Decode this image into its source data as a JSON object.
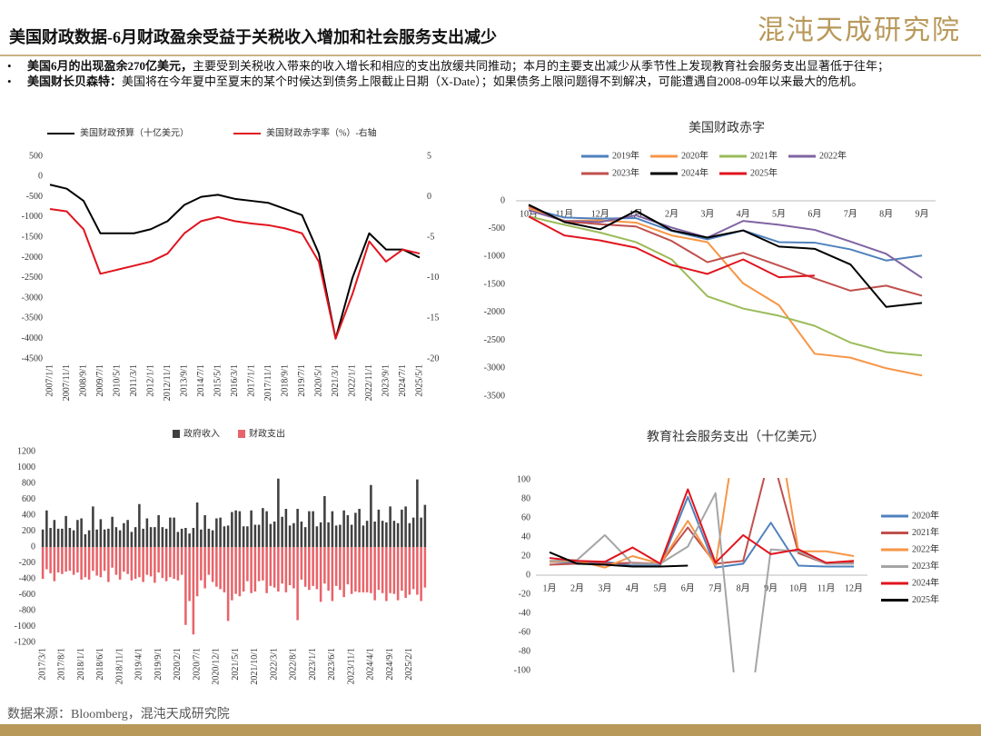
{
  "header": {
    "title": "美国财政数据-6月财政盈余受益于关税收入增加和社会服务支出减少",
    "logo": "混沌天成研究院"
  },
  "bullets": [
    {
      "bold": "美国6月的出现盈余270亿美元，",
      "text": "主要受到关税收入带来的收入增长和相应的支出放缓共同推动；本月的主要支出减少从季节性上发现教育社会服务支出显著低于往年；"
    },
    {
      "bold": "美国财长贝森特：",
      "text": "美国将在今年夏中至夏末的某个时候达到债务上限截止日期（X-Date）；如果债务上限问题得不到解决，可能遭遇自2008-09年以来最大的危机。"
    }
  ],
  "source": "数据来源：Bloomberg，混沌天成研究院",
  "chart_data": [
    {
      "type": "line",
      "categories": [
        "2007/1/1",
        "2007/11/1",
        "2008/9/1",
        "2009/7/1",
        "2010/5/1",
        "2011/3/1",
        "2012/1/1",
        "2012/11/1",
        "2013/9/1",
        "2014/7/1",
        "2015/5/1",
        "2016/3/1",
        "2017/1/1",
        "2017/11/1",
        "2018/9/1",
        "2019/7/1",
        "2020/5/1",
        "2021/3/1",
        "2022/1/1",
        "2022/11/1",
        "2023/9/1",
        "2024/7/1",
        "2025/5/1"
      ],
      "series": [
        {
          "name": "美国财政预算（十亿美元）",
          "color": "#000000",
          "axis": "y",
          "values": [
            -200,
            -300,
            -600,
            -1400,
            -1400,
            -1400,
            -1300,
            -1100,
            -700,
            -500,
            -450,
            -550,
            -600,
            -650,
            -800,
            -950,
            -1900,
            -4000,
            -2500,
            -1400,
            -1800,
            -1800,
            -2000
          ]
        },
        {
          "name": "美国财政赤字率（%）-右轴",
          "color": "#e0141e",
          "axis": "y2",
          "values": [
            -1.5,
            -1.8,
            -4,
            -9.5,
            -9,
            -8.5,
            -8,
            -7,
            -4.5,
            -3,
            -2.5,
            -3,
            -3.3,
            -3.5,
            -3.9,
            -4.5,
            -8,
            -17.5,
            -12,
            -5.5,
            -8,
            -6.5,
            -7
          ]
        }
      ],
      "ylim": [
        -4500,
        500
      ],
      "yticks": [
        500,
        0,
        -500,
        -1000,
        -1500,
        -2000,
        -2500,
        -3000,
        -3500,
        -4000,
        -4500
      ],
      "y2lim": [
        -20,
        5
      ],
      "y2ticks": [
        5,
        0,
        -5,
        -10,
        -15,
        -20
      ]
    },
    {
      "type": "bar",
      "categories": [
        "2017/3/1",
        null,
        null,
        null,
        null,
        "2017/8/1",
        null,
        null,
        null,
        null,
        "2018/1/1",
        null,
        null,
        null,
        null,
        "2018/6/1",
        null,
        null,
        null,
        null,
        "2018/11/1",
        null,
        null,
        null,
        null,
        "2019/4/1",
        null,
        null,
        null,
        null,
        "2019/9/1",
        null,
        null,
        null,
        null,
        "2020/2/1",
        null,
        null,
        null,
        null,
        "2020/7/1",
        null,
        null,
        null,
        null,
        "2020/12/1",
        null,
        null,
        null,
        null,
        "2021/5/1",
        null,
        null,
        null,
        null,
        "2021/10/1",
        null,
        null,
        null,
        null,
        "2022/3/1",
        null,
        null,
        null,
        null,
        "2022/8/1",
        null,
        null,
        null,
        null,
        "2023/1/1",
        null,
        null,
        null,
        null,
        "2023/6/1",
        null,
        null,
        null,
        null,
        "2023/11/1",
        null,
        null,
        null,
        null,
        "2024/4/1",
        null,
        null,
        null,
        null,
        "2024/9/1",
        null,
        null,
        null,
        null,
        "2025/2/1",
        null,
        null,
        null,
        null
      ],
      "series": [
        {
          "name": "政府收入",
          "color": "#404040",
          "values": [
            220,
            460,
            240,
            340,
            230,
            230,
            390,
            240,
            210,
            340,
            360,
            160,
            210,
            510,
            220,
            350,
            220,
            230,
            380,
            250,
            210,
            300,
            340,
            190,
            250,
            540,
            230,
            360,
            250,
            250,
            400,
            250,
            230,
            370,
            370,
            190,
            230,
            240,
            170,
            240,
            560,
            220,
            400,
            230,
            210,
            360,
            370,
            260,
            270,
            440,
            460,
            450,
            260,
            260,
            460,
            280,
            280,
            490,
            450,
            290,
            320,
            860,
            380,
            480,
            270,
            300,
            480,
            320,
            250,
            450,
            450,
            260,
            310,
            640,
            310,
            450,
            270,
            280,
            460,
            400,
            280,
            430,
            480,
            270,
            330,
            780,
            320,
            470,
            330,
            310,
            510,
            330,
            300,
            470,
            510,
            300,
            370,
            850,
            370,
            530
          ]
        },
        {
          "name": "财政支出",
          "color": "#e8646a",
          "values": [
            -400,
            -280,
            -330,
            -430,
            -320,
            -340,
            -310,
            -300,
            -350,
            -320,
            -410,
            -380,
            -410,
            -300,
            -360,
            -380,
            -300,
            -440,
            -260,
            -350,
            -410,
            -310,
            -340,
            -420,
            -400,
            -380,
            -440,
            -350,
            -370,
            -450,
            -320,
            -390,
            -430,
            -380,
            -400,
            -420,
            -350,
            -980,
            -680,
            -1100,
            -620,
            -420,
            -520,
            -350,
            -440,
            -500,
            -530,
            -570,
            -930,
            -670,
            -590,
            -620,
            -560,
            -430,
            -580,
            -560,
            -430,
            -420,
            -580,
            -490,
            -510,
            -560,
            -460,
            -570,
            -480,
            -520,
            -920,
            -410,
            -500,
            -540,
            -490,
            -530,
            -690,
            -460,
            -550,
            -680,
            -490,
            -540,
            -630,
            -470,
            -590,
            -560,
            -570,
            -570,
            -570,
            -580,
            -670,
            -540,
            -580,
            -680,
            -580,
            -590,
            -670,
            -550,
            -640,
            -600,
            -530,
            -600,
            -680,
            -510
          ]
        }
      ],
      "ylim": [
        -1200,
        1200
      ],
      "yticks": [
        1200,
        1000,
        800,
        600,
        400,
        200,
        0,
        -200,
        -400,
        -600,
        -800,
        -1000,
        -1200
      ]
    },
    {
      "type": "line",
      "title": "美国财政赤字",
      "categories": [
        "10月",
        "11月",
        "12月",
        "1月",
        "2月",
        "3月",
        "4月",
        "5月",
        "6月",
        "7月",
        "8月",
        "9月"
      ],
      "series": [
        {
          "name": "2019年",
          "color": "#4f81bd",
          "values": [
            -130,
            -300,
            -320,
            -310,
            -540,
            -690,
            -530,
            -740,
            -750,
            -870,
            -1070,
            -980
          ]
        },
        {
          "name": "2020年",
          "color": "#f79646",
          "values": [
            -130,
            -360,
            -350,
            -390,
            -620,
            -740,
            -1480,
            -1870,
            -2740,
            -2810,
            -3000,
            -3130
          ]
        },
        {
          "name": "2021年",
          "color": "#9bbb59",
          "values": [
            -280,
            -430,
            -570,
            -740,
            -1050,
            -1710,
            -1930,
            -2060,
            -2240,
            -2540,
            -2710,
            -2770
          ]
        },
        {
          "name": "2022年",
          "color": "#8064a2",
          "values": [
            -170,
            -360,
            -380,
            -260,
            -480,
            -660,
            -360,
            -430,
            -520,
            -730,
            -950,
            -1380
          ]
        },
        {
          "name": "2023年",
          "color": "#c0504d",
          "values": [
            -90,
            -370,
            -420,
            -460,
            -720,
            -1100,
            -930,
            -1160,
            -1390,
            -1610,
            -1520,
            -1700
          ]
        },
        {
          "name": "2024年",
          "color": "#000000",
          "values": [
            -70,
            -380,
            -510,
            -180,
            -530,
            -660,
            -530,
            -820,
            -860,
            -1140,
            -1900,
            -1830
          ]
        },
        {
          "name": "2025年",
          "color": "#e0141e",
          "values": [
            -280,
            -620,
            -710,
            -840,
            -1150,
            -1310,
            -1050,
            -1370,
            -1340,
            null,
            null,
            null
          ]
        }
      ],
      "ylim": [
        -3500,
        0
      ],
      "yticks": [
        0,
        -500,
        -1000,
        -1500,
        -2000,
        -2500,
        -3000,
        -3500
      ]
    },
    {
      "type": "line",
      "title": "教育社会服务支出（十亿美元）",
      "categories": [
        "1月",
        "2月",
        "3月",
        "4月",
        "5月",
        "6月",
        "7月",
        "8月",
        "9月",
        "10月",
        "11月",
        "12月"
      ],
      "series": [
        {
          "name": "2020年",
          "color": "#4f81bd",
          "values": [
            14,
            13,
            14,
            10,
            10,
            82,
            8,
            12,
            55,
            10,
            9,
            9
          ]
        },
        {
          "name": "2021年",
          "color": "#c0504d",
          "values": [
            11,
            12,
            12,
            13,
            12,
            50,
            12,
            15,
            130,
            23,
            12,
            13
          ]
        },
        {
          "name": "2022年",
          "color": "#f79646",
          "values": [
            14,
            15,
            8,
            20,
            12,
            57,
            10,
            200,
            200,
            25,
            25,
            20
          ]
        },
        {
          "name": "2023年",
          "color": "#a5a5a5",
          "values": [
            15,
            16,
            42,
            12,
            12,
            30,
            86,
            -200,
            27,
            25,
            12,
            12
          ]
        },
        {
          "name": "2024年",
          "color": "#e0141e",
          "values": [
            18,
            15,
            14,
            29,
            12,
            90,
            13,
            42,
            22,
            27,
            13,
            15
          ]
        },
        {
          "name": "2025年",
          "color": "#000000",
          "values": [
            24,
            12,
            11,
            9,
            9,
            10,
            null,
            null,
            null,
            null,
            null,
            null
          ]
        }
      ],
      "ylim": [
        -100,
        100
      ],
      "yticks": [
        100,
        80,
        60,
        40,
        20,
        0,
        -20,
        -40,
        -60,
        -80,
        -100
      ]
    }
  ]
}
